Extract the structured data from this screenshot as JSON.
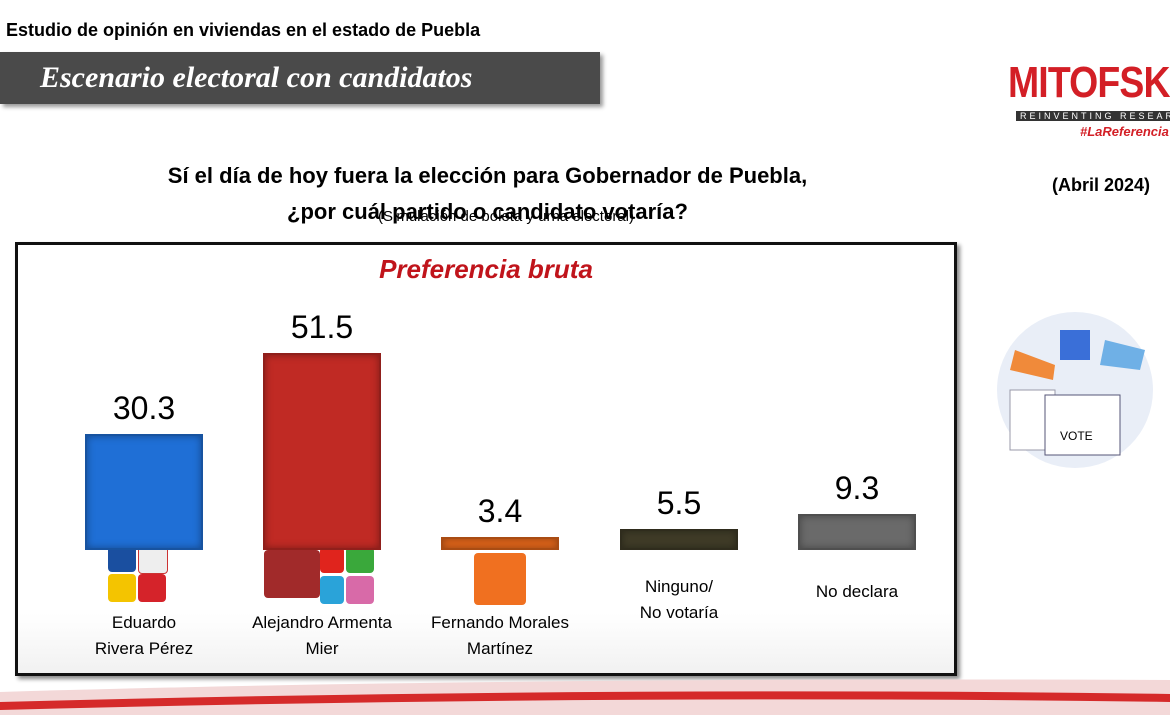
{
  "header": {
    "study": "Estudio de opinión en viviendas en el estado de Puebla",
    "banner": "Escenario electoral con candidatos",
    "question": "Sí el día de hoy fuera la elección para Gobernador de Puebla,\n¿por cuál partido o candidato votaría?",
    "note": "(Simulación de boleta y urna electoral)"
  },
  "brand": {
    "name": "MITOFSKY",
    "tagline": "REINVENTING RESEARCH",
    "hashtag": "#LaReferencia",
    "date": "(Abril 2024)",
    "illustration_label": "VOTE"
  },
  "chart_data": {
    "type": "bar",
    "title": "Preferencia bruta",
    "categories": [
      "Eduardo\nRivera Pérez",
      "Alejandro Armenta\nMier",
      "Fernando Morales\nMartínez",
      "Ninguno/\nNo votaría",
      "No declara"
    ],
    "values": [
      30.3,
      51.5,
      3.4,
      5.5,
      9.3
    ],
    "colors": [
      "#1f6fd6",
      "#c02a24",
      "#e2661a",
      "#3f3b27",
      "#6a6a6a"
    ]
  }
}
